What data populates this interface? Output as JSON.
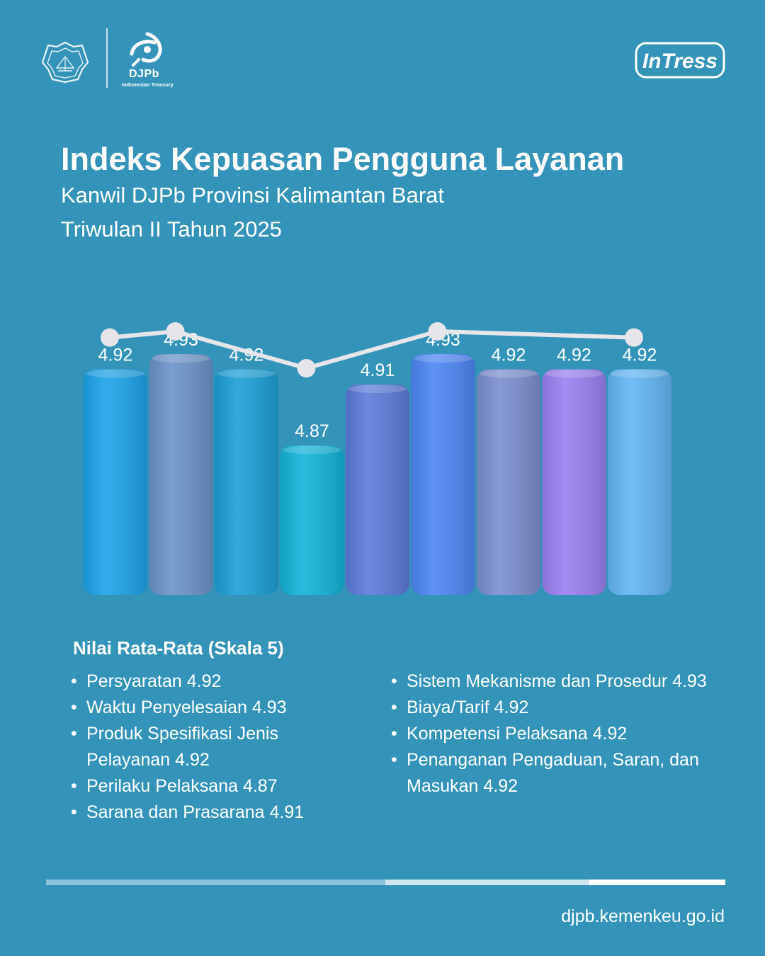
{
  "brand": {
    "djpb_name": "DJPb",
    "djpb_tagline": "Indonesian Treasury",
    "program_logo": "InTress"
  },
  "header": {
    "title": "Indeks Kepuasan Pengguna Layanan",
    "subtitle_line1": "Kanwil DJPb Provinsi Kalimantan Barat",
    "subtitle_line2": "Triwulan II Tahun 2025"
  },
  "chart_data": {
    "type": "bar",
    "categories": [
      "Persyaratan",
      "Waktu Penyelesaian",
      "Produk Spesifikasi Jenis Pelayanan",
      "Perilaku Pelaksana",
      "Sarana dan Prasarana",
      "Sistem Mekanisme dan Prosedur",
      "Biaya/Tarif",
      "Kompetensi Pelaksana",
      "Penanganan Pengaduan, Saran, dan Masukan"
    ],
    "values": [
      4.92,
      4.93,
      4.92,
      4.87,
      4.91,
      4.93,
      4.92,
      4.92,
      4.92
    ],
    "value_labels": [
      "4.92",
      "4.93",
      "4.92",
      "4.87",
      "4.91",
      "4.93",
      "4.92",
      "4.92",
      "4.92"
    ],
    "line_values": [
      4.92,
      4.93,
      null,
      4.87,
      null,
      4.93,
      null,
      null,
      4.92
    ],
    "bar_colors": [
      "#1ca3e8",
      "#6b93c9",
      "#1b9fd6",
      "#12b3d9",
      "#5c7ad9",
      "#4d86f4",
      "#7b8fd0",
      "#9a80f0",
      "#62b6f4"
    ],
    "line_color": "#e6e6ea",
    "title": "",
    "xlabel": "",
    "ylabel": "",
    "grid": false,
    "legend": "none"
  },
  "legend": {
    "title": "Nilai Rata-Rata (Skala 5)",
    "left_items": [
      "Persyaratan 4.92",
      "Waktu Penyelesaian 4.93",
      "Produk Spesifikasi Jenis Pelayanan 4.92",
      "Perilaku Pelaksana 4.87",
      "Sarana dan Prasarana 4.91"
    ],
    "right_items": [
      "Sistem Mekanisme dan Prosedur 4.93",
      "Biaya/Tarif 4.92",
      "Kompetensi Pelaksana 4.92",
      "Penanganan Pengaduan, Saran, dan Masukan 4.92"
    ]
  },
  "footer": {
    "url": "djpb.kemenkeu.go.id"
  },
  "colors": {
    "background": "#3493b9",
    "text": "#ffffff"
  }
}
